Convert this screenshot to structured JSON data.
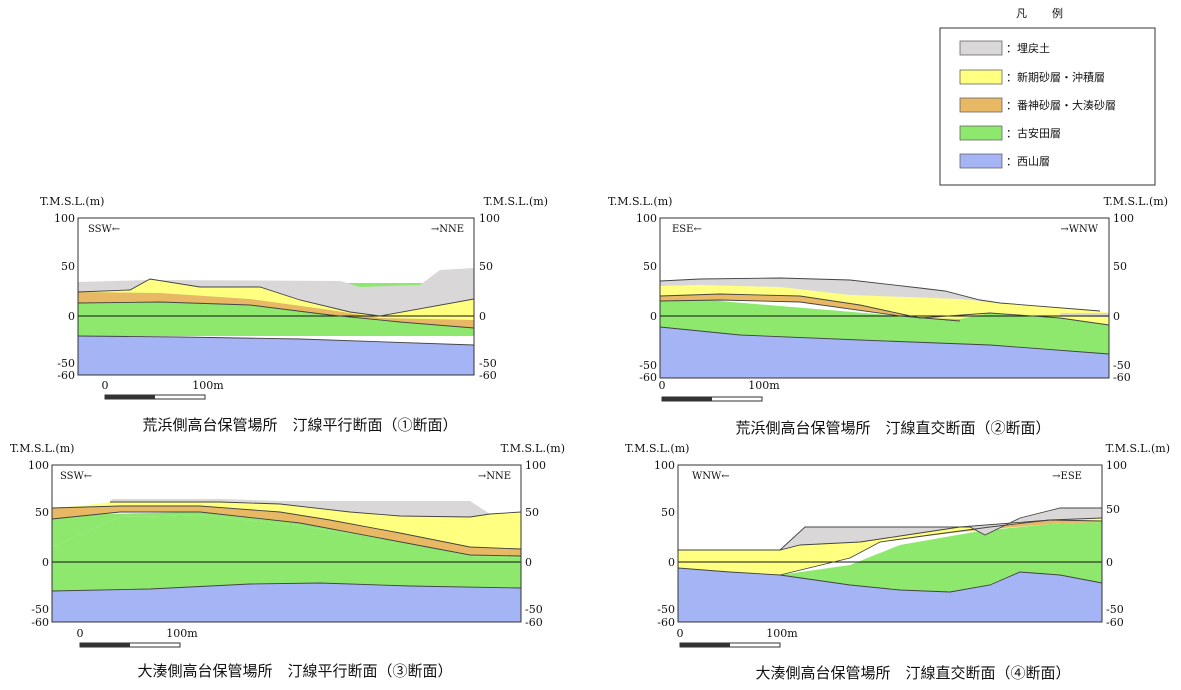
{
  "legend": {
    "title": "凡　　例",
    "items": [
      {
        "label": "：埋戻土",
        "color": "#d9d7d8"
      },
      {
        "label": "：新期砂層・沖積層",
        "color": "#ffff80"
      },
      {
        "label": "：番神砂層・大湊砂層",
        "color": "#e8b865"
      },
      {
        "label": "：古安田層",
        "color": "#8ee86e"
      },
      {
        "label": "：西山層",
        "color": "#a4b4f4"
      }
    ]
  },
  "panels": [
    {
      "caption": "荒浜側高台保管場所　汀線平行断面（①断面）",
      "left_axis_label": "T.M.S.L.(m)",
      "right_axis_label": "T.M.S.L.(m)",
      "dir_left": "SSW←",
      "dir_right": "→NNE",
      "ticks_left": [
        "100",
        "50",
        "0",
        "-50",
        "-60"
      ],
      "ticks_right": [
        "100",
        "50",
        "0",
        "-50",
        "-60"
      ],
      "scale": {
        "zero": "0",
        "end": "100m"
      }
    },
    {
      "caption": "荒浜側高台保管場所　汀線直交断面（②断面）",
      "left_axis_label": "T.M.S.L.(m)",
      "right_axis_label": "T.M.S.L.(m)",
      "dir_left": "ESE←",
      "dir_right": "→WNW",
      "ticks_left": [
        "100",
        "50",
        "0",
        "-50",
        "-60"
      ],
      "ticks_right": [
        "100",
        "50",
        "0",
        "-50",
        "-60"
      ],
      "scale": {
        "zero": "0",
        "end": "100m"
      }
    },
    {
      "caption": "大湊側高台保管場所　汀線平行断面（③断面）",
      "left_axis_label": "T.M.S.L.(m)",
      "right_axis_label": "T.M.S.L.(m)",
      "dir_left": "SSW←",
      "dir_right": "→NNE",
      "ticks_left": [
        "100",
        "50",
        "0",
        "-50",
        "-60"
      ],
      "ticks_right": [
        "100",
        "50",
        "0",
        "-50",
        "-60"
      ],
      "scale": {
        "zero": "0",
        "end": "100m"
      }
    },
    {
      "caption": "大湊側高台保管場所　汀線直交断面（④断面）",
      "left_axis_label": "T.M.S.L.(m)",
      "right_axis_label": "T.M.S.L.(m)",
      "dir_left": "WNW←",
      "dir_right": "→ESE",
      "ticks_left": [
        "100",
        "50",
        "0",
        "-50",
        "-60"
      ],
      "ticks_right": [
        "100",
        "50",
        "0",
        "-50",
        "-60"
      ],
      "scale": {
        "zero": "0",
        "end": "100m"
      }
    }
  ]
}
